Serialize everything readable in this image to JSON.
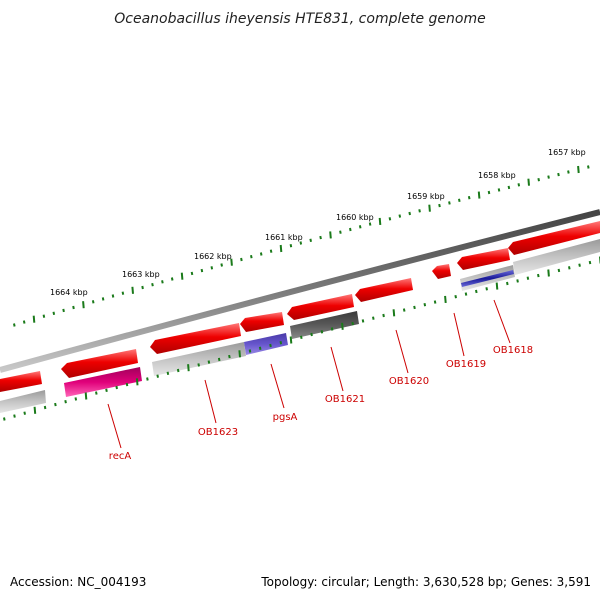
{
  "title": "Oceanobacillus iheyensis HTE831, complete genome",
  "accession": "Accession: NC_004193",
  "topology": "Topology: circular; Length: 3,630,528 bp; Genes: 3,591",
  "colors": {
    "backbone": "#7a7a7a",
    "tick": "#1a7a1a",
    "forward_gene": "#ee0000",
    "reverse_default": "#b4b4b4",
    "reverse_dark": "#5a5a5a",
    "recA": "#e0007a",
    "pgsA": "#6655cc",
    "OB1618_band": "#1a1a99",
    "label": "#cc0000"
  },
  "kbp_labels": [
    "1657 kbp",
    "1658 kbp",
    "1659 kbp",
    "1660 kbp",
    "1661 kbp",
    "1662 kbp",
    "1663 kbp",
    "1664 kbp"
  ],
  "gene_labels": [
    "recA",
    "OB1623",
    "pgsA",
    "OB1621",
    "OB1620",
    "OB1619",
    "OB1618"
  ]
}
